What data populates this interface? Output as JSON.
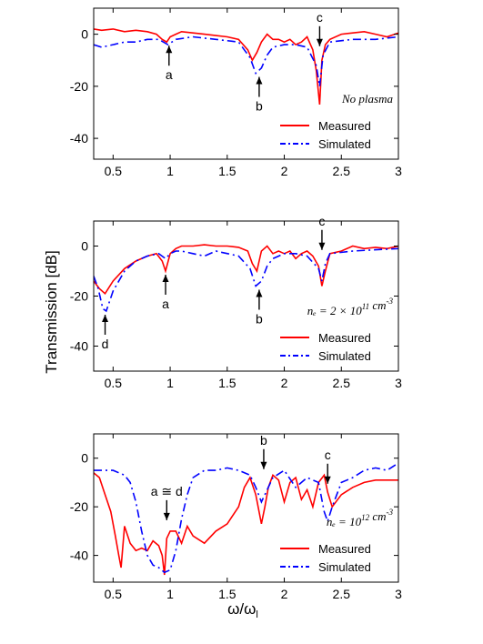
{
  "figure": {
    "ylabel": "Transmission [dB]",
    "xlabel": "ω/ω",
    "xlabel_sub": "l"
  },
  "chart_data": [
    {
      "type": "line",
      "xlim": [
        0.33,
        3.0
      ],
      "ylim": [
        -48,
        10
      ],
      "xticks": [
        "0.5",
        "1",
        "1.5",
        "2",
        "2.5",
        "3"
      ],
      "yticks": [
        "0",
        "-20",
        "-40"
      ],
      "condition_label": "No plasma",
      "legend_position": "bottom-right",
      "series": [
        {
          "name": "Measured",
          "color": "#ff0000",
          "x": [
            0.33,
            0.4,
            0.5,
            0.6,
            0.7,
            0.8,
            0.88,
            0.93,
            0.97,
            1.0,
            1.05,
            1.1,
            1.2,
            1.3,
            1.4,
            1.5,
            1.6,
            1.68,
            1.72,
            1.76,
            1.8,
            1.85,
            1.9,
            1.95,
            2.0,
            2.05,
            2.1,
            2.15,
            2.2,
            2.25,
            2.28,
            2.31,
            2.33,
            2.36,
            2.4,
            2.5,
            2.6,
            2.7,
            2.8,
            2.9,
            3.0
          ],
          "y": [
            2,
            1.5,
            2,
            1,
            1.5,
            1,
            0,
            -2,
            -3,
            -1,
            0,
            1,
            0.5,
            0,
            -0.5,
            -1,
            -2,
            -6,
            -10,
            -7,
            -3,
            0,
            -2,
            -2,
            -3,
            -2,
            -4,
            -3,
            -1,
            -6,
            -14,
            -27,
            -10,
            -4,
            -2,
            0,
            0.5,
            1,
            0,
            -1,
            0.5
          ]
        },
        {
          "name": "Simulated",
          "color": "#0000ff",
          "x": [
            0.33,
            0.4,
            0.5,
            0.6,
            0.7,
            0.8,
            0.9,
            0.98,
            1.05,
            1.2,
            1.4,
            1.6,
            1.7,
            1.75,
            1.8,
            1.85,
            1.9,
            2.0,
            2.1,
            2.2,
            2.28,
            2.31,
            2.34,
            2.4,
            2.6,
            2.8,
            3.0
          ],
          "y": [
            -4,
            -5,
            -4,
            -3,
            -3,
            -2,
            -2,
            -4,
            -2,
            -1,
            -2,
            -3,
            -9,
            -15,
            -13,
            -8,
            -5,
            -4,
            -4,
            -5,
            -12,
            -20,
            -8,
            -3,
            -2,
            -2,
            -1
          ]
        }
      ],
      "annotations": [
        {
          "text": "a",
          "x": 0.99,
          "y": -3,
          "arrow": "up"
        },
        {
          "text": "b",
          "x": 1.78,
          "y": -15,
          "arrow": "up"
        },
        {
          "text": "c",
          "x": 2.31,
          "y": -6,
          "arrow": "down"
        }
      ]
    },
    {
      "type": "line",
      "xlim": [
        0.33,
        3.0
      ],
      "ylim": [
        -50,
        10
      ],
      "xticks": [
        "0.5",
        "1",
        "1.5",
        "2",
        "2.5",
        "3"
      ],
      "yticks": [
        "0",
        "-20",
        "-40"
      ],
      "condition_label": "n_e = 2 × 10^11 cm^-3",
      "legend_position": "bottom-right",
      "series": [
        {
          "name": "Measured",
          "color": "#ff0000",
          "x": [
            0.33,
            0.38,
            0.43,
            0.5,
            0.6,
            0.7,
            0.8,
            0.88,
            0.93,
            0.96,
            1.0,
            1.05,
            1.1,
            1.2,
            1.3,
            1.4,
            1.5,
            1.6,
            1.68,
            1.72,
            1.76,
            1.8,
            1.85,
            1.9,
            1.95,
            2.0,
            2.05,
            2.1,
            2.15,
            2.2,
            2.25,
            2.3,
            2.33,
            2.36,
            2.4,
            2.5,
            2.6,
            2.7,
            2.8,
            2.9,
            3.0
          ],
          "y": [
            -14,
            -17,
            -19,
            -14,
            -9,
            -6,
            -4,
            -3,
            -6,
            -10,
            -3,
            -1,
            0,
            0,
            0.5,
            0,
            0,
            -0.5,
            -2,
            -7,
            -10,
            -2,
            0,
            -3,
            -2,
            -3,
            -2,
            -5,
            -3,
            -2,
            -4,
            -8,
            -16,
            -10,
            -3,
            -2,
            0,
            -1,
            -0.5,
            -1,
            0
          ]
        },
        {
          "name": "Simulated",
          "color": "#0000ff",
          "x": [
            0.33,
            0.37,
            0.41,
            0.44,
            0.5,
            0.6,
            0.7,
            0.8,
            0.9,
            0.96,
            1.0,
            1.05,
            1.1,
            1.2,
            1.3,
            1.4,
            1.6,
            1.7,
            1.75,
            1.8,
            1.85,
            1.9,
            2.0,
            2.1,
            2.2,
            2.3,
            2.33,
            2.36,
            2.4,
            2.6,
            2.8,
            3.0
          ],
          "y": [
            -12,
            -17,
            -25,
            -26,
            -18,
            -10,
            -6,
            -4,
            -3,
            -5,
            -3,
            -2,
            -2,
            -3,
            -4,
            -2,
            -4,
            -9,
            -16,
            -14,
            -8,
            -5,
            -3,
            -3,
            -4,
            -9,
            -14,
            -7,
            -3,
            -2,
            -1.5,
            -1
          ]
        }
      ],
      "annotations": [
        {
          "text": "a",
          "x": 0.96,
          "y": -10,
          "arrow": "up"
        },
        {
          "text": "b",
          "x": 1.78,
          "y": -16,
          "arrow": "up"
        },
        {
          "text": "c",
          "x": 2.33,
          "y": -3,
          "arrow": "down"
        },
        {
          "text": "d",
          "x": 0.43,
          "y": -26,
          "arrow": "up"
        }
      ]
    },
    {
      "type": "line",
      "xlim": [
        0.33,
        3.0
      ],
      "ylim": [
        -51,
        10
      ],
      "xticks": [
        "0.5",
        "1",
        "1.5",
        "2",
        "2.5",
        "3"
      ],
      "yticks": [
        "0",
        "-20",
        "-40"
      ],
      "condition_label": "n_e = 10^12 cm^-3",
      "legend_position": "bottom-right",
      "series": [
        {
          "name": "Measured",
          "color": "#ff0000",
          "x": [
            0.33,
            0.38,
            0.43,
            0.48,
            0.52,
            0.55,
            0.57,
            0.6,
            0.65,
            0.7,
            0.75,
            0.8,
            0.85,
            0.9,
            0.93,
            0.95,
            0.97,
            1.0,
            1.05,
            1.1,
            1.15,
            1.2,
            1.3,
            1.4,
            1.5,
            1.6,
            1.65,
            1.7,
            1.75,
            1.8,
            1.83,
            1.86,
            1.9,
            1.95,
            2.0,
            2.05,
            2.1,
            2.15,
            2.2,
            2.25,
            2.3,
            2.35,
            2.38,
            2.42,
            2.5,
            2.6,
            2.7,
            2.8,
            2.9,
            3.0
          ],
          "y": [
            -6,
            -8,
            -15,
            -22,
            -32,
            -40,
            -45,
            -28,
            -35,
            -38,
            -37,
            -38,
            -34,
            -36,
            -40,
            -48,
            -33,
            -30,
            -30,
            -35,
            -28,
            -32,
            -35,
            -30,
            -27,
            -20,
            -12,
            -8,
            -15,
            -27,
            -20,
            -12,
            -7,
            -9,
            -18,
            -10,
            -8,
            -17,
            -13,
            -20,
            -10,
            -7,
            -14,
            -20,
            -15,
            -12,
            -10,
            -9,
            -9,
            -9
          ]
        },
        {
          "name": "Simulated",
          "color": "#0000ff",
          "x": [
            0.33,
            0.5,
            0.6,
            0.65,
            0.7,
            0.75,
            0.8,
            0.85,
            0.9,
            0.95,
            1.0,
            1.05,
            1.1,
            1.15,
            1.2,
            1.3,
            1.4,
            1.5,
            1.6,
            1.7,
            1.75,
            1.8,
            1.85,
            1.9,
            2.0,
            2.1,
            2.2,
            2.3,
            2.35,
            2.38,
            2.42,
            2.5,
            2.6,
            2.7,
            2.8,
            2.9,
            3.0
          ],
          "y": [
            -5,
            -5,
            -7,
            -10,
            -18,
            -30,
            -40,
            -44,
            -45,
            -47,
            -46,
            -38,
            -25,
            -15,
            -8,
            -5,
            -5,
            -4,
            -5,
            -7,
            -12,
            -18,
            -13,
            -8,
            -5,
            -12,
            -8,
            -10,
            -22,
            -26,
            -20,
            -10,
            -8,
            -5,
            -4,
            -5,
            -2
          ]
        }
      ],
      "annotations": [
        {
          "text": "a ≅ d",
          "x": 0.97,
          "y": -27,
          "arrow": "down"
        },
        {
          "text": "b",
          "x": 1.82,
          "y": -6,
          "arrow": "down"
        },
        {
          "text": "c",
          "x": 2.38,
          "y": -12,
          "arrow": "down"
        }
      ]
    }
  ]
}
